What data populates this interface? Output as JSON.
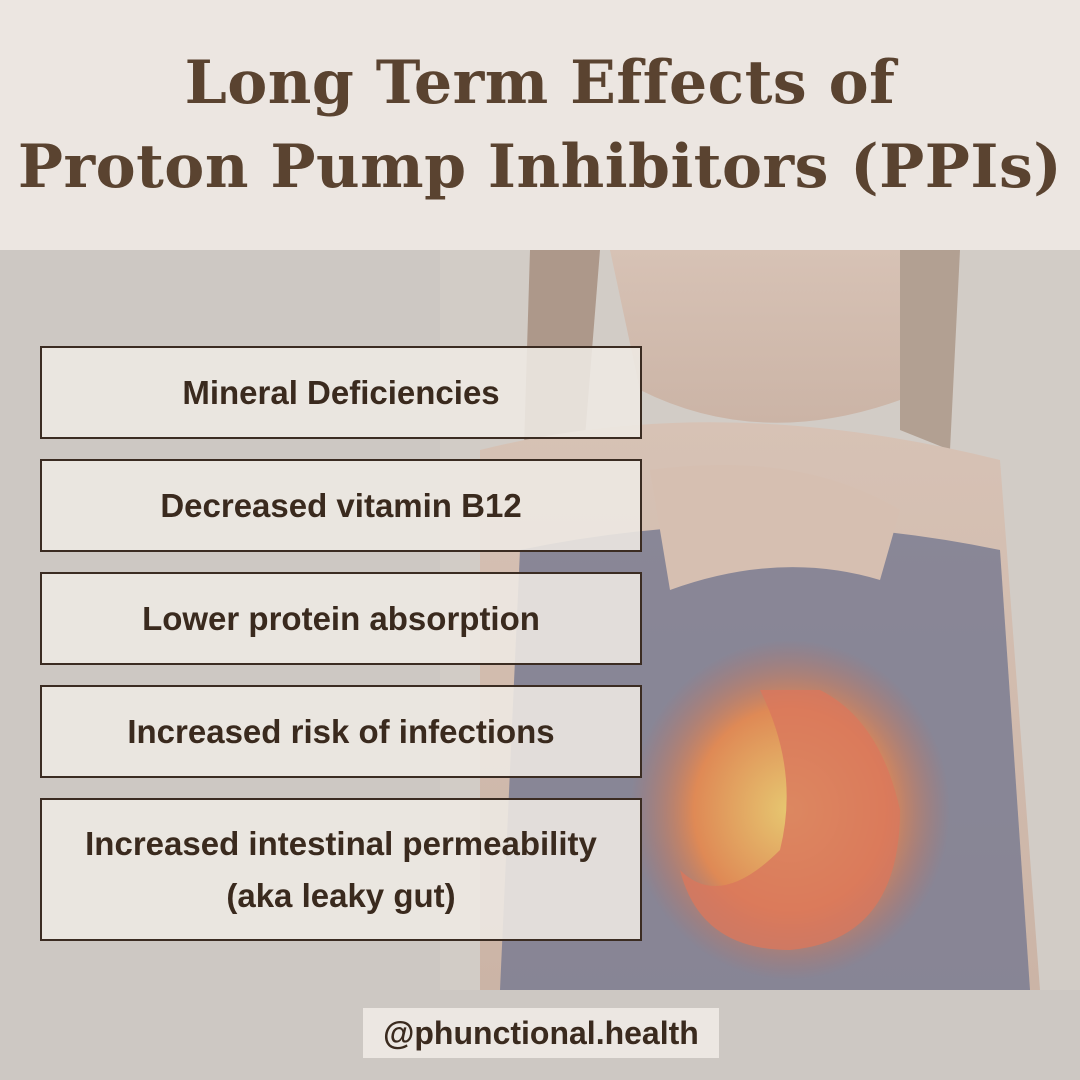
{
  "header": {
    "title_lines": [
      "Long Term Effects of",
      "Proton Pump Inhibitors (PPIs)"
    ]
  },
  "effects": [
    [
      "Mineral Deficiencies"
    ],
    [
      "Decreased vitamin B12"
    ],
    [
      "Lower protein absorption"
    ],
    [
      "Increased risk of infections"
    ],
    [
      "Increased intestinal permeability",
      "(aka leaky gut)"
    ]
  ],
  "footer": {
    "handle": "@phunctional.health"
  }
}
